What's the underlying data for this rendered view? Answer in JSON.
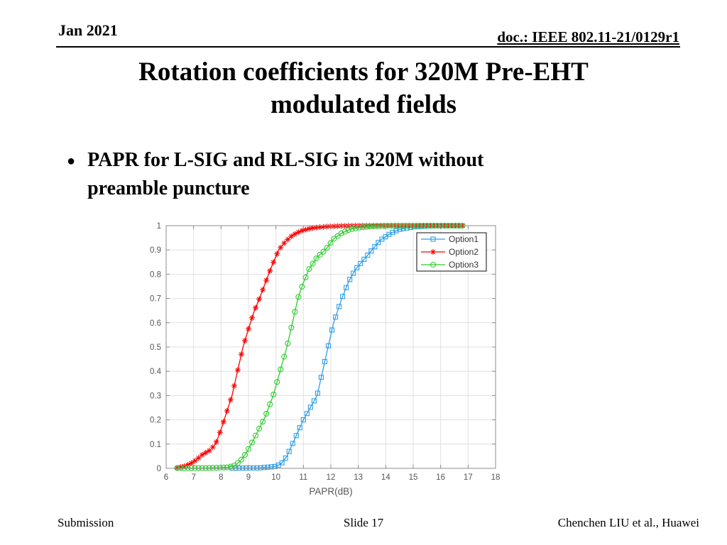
{
  "slide": {
    "header": {
      "date": "Jan 2021",
      "doc_id": "doc.: IEEE 802.11-21/0129r1"
    },
    "title": {
      "line1": "Rotation coefficients for 320M Pre-EHT",
      "line2": "modulated fields"
    },
    "bullet": {
      "marker": "●",
      "line1": "PAPR for L-SIG and RL-SIG in 320M without",
      "line2": "preamble puncture"
    },
    "footer": {
      "left": "Submission",
      "center": "Slide 17",
      "right": "Chenchen LIU et al., Huawei"
    }
  },
  "chart_data": {
    "type": "line",
    "subtype": "cdf",
    "title": "",
    "xlabel": "PAPR(dB)",
    "ylabel": "",
    "xlim": [
      6,
      18
    ],
    "ylim": [
      0,
      1
    ],
    "xticks": [
      6,
      7,
      8,
      9,
      10,
      11,
      12,
      13,
      14,
      15,
      16,
      17,
      18
    ],
    "yticks": [
      0,
      0.1,
      0.2,
      0.3,
      0.4,
      0.5,
      0.6,
      0.7,
      0.8,
      0.9,
      1
    ],
    "ytick_labels": [
      "0",
      "0.1",
      "0.2",
      "0.3",
      "0.4",
      "0.5",
      "0.6",
      "0.7",
      "0.8",
      "0.9",
      "1"
    ],
    "grid": true,
    "legend": {
      "position": "upper-right",
      "entries": [
        "Option1",
        "Option2",
        "Option3"
      ]
    },
    "marker_step": 0.13,
    "colors": {
      "grid": "#e0e0e0",
      "box": "#8c8c8c",
      "tick_text": "#555555",
      "legend_text": "#333333",
      "legend_border": "#333333"
    },
    "series": [
      {
        "name": "Option1",
        "color": "#2e9fe8",
        "marker": "square",
        "points": [
          [
            8.4,
            0.001
          ],
          [
            9.4,
            0.002
          ],
          [
            10.0,
            0.008
          ],
          [
            10.2,
            0.02
          ],
          [
            10.4,
            0.05
          ],
          [
            10.6,
            0.1
          ],
          [
            10.8,
            0.15
          ],
          [
            11.0,
            0.2
          ],
          [
            11.25,
            0.25
          ],
          [
            11.5,
            0.3
          ],
          [
            11.7,
            0.4
          ],
          [
            11.9,
            0.5
          ],
          [
            12.1,
            0.6
          ],
          [
            12.4,
            0.7
          ],
          [
            12.65,
            0.77
          ],
          [
            12.9,
            0.82
          ],
          [
            13.2,
            0.86
          ],
          [
            13.5,
            0.9
          ],
          [
            13.8,
            0.94
          ],
          [
            14.2,
            0.97
          ],
          [
            14.5,
            0.985
          ],
          [
            15.0,
            0.995
          ],
          [
            15.6,
            0.999
          ],
          [
            16.0,
            1.0
          ],
          [
            16.8,
            1.0
          ]
        ]
      },
      {
        "name": "Option2",
        "color": "#ff0000",
        "marker": "asterisk",
        "points": [
          [
            6.4,
            0.002
          ],
          [
            6.7,
            0.01
          ],
          [
            6.9,
            0.02
          ],
          [
            7.1,
            0.035
          ],
          [
            7.3,
            0.055
          ],
          [
            7.6,
            0.075
          ],
          [
            7.8,
            0.1
          ],
          [
            8.0,
            0.16
          ],
          [
            8.2,
            0.23
          ],
          [
            8.4,
            0.3
          ],
          [
            8.6,
            0.4
          ],
          [
            8.8,
            0.5
          ],
          [
            9.0,
            0.575
          ],
          [
            9.2,
            0.645
          ],
          [
            9.4,
            0.7
          ],
          [
            9.6,
            0.76
          ],
          [
            9.8,
            0.82
          ],
          [
            10.1,
            0.9
          ],
          [
            10.35,
            0.935
          ],
          [
            10.6,
            0.96
          ],
          [
            10.9,
            0.978
          ],
          [
            11.3,
            0.99
          ],
          [
            11.8,
            0.996
          ],
          [
            12.4,
            0.999
          ],
          [
            13.0,
            1.0
          ],
          [
            16.8,
            1.0
          ]
        ]
      },
      {
        "name": "Option3",
        "color": "#2fcc2f",
        "marker": "circle",
        "points": [
          [
            6.4,
            0.001
          ],
          [
            7.4,
            0.001
          ],
          [
            8.25,
            0.004
          ],
          [
            8.5,
            0.012
          ],
          [
            8.7,
            0.03
          ],
          [
            8.9,
            0.06
          ],
          [
            9.1,
            0.1
          ],
          [
            9.35,
            0.155
          ],
          [
            9.6,
            0.21
          ],
          [
            9.9,
            0.3
          ],
          [
            10.15,
            0.4
          ],
          [
            10.4,
            0.5
          ],
          [
            10.6,
            0.6
          ],
          [
            10.8,
            0.7
          ],
          [
            11.0,
            0.765
          ],
          [
            11.2,
            0.82
          ],
          [
            11.5,
            0.87
          ],
          [
            11.8,
            0.9
          ],
          [
            12.1,
            0.945
          ],
          [
            12.4,
            0.97
          ],
          [
            12.7,
            0.985
          ],
          [
            13.1,
            0.993
          ],
          [
            13.6,
            0.998
          ],
          [
            14.1,
            1.0
          ],
          [
            16.8,
            1.0
          ]
        ]
      }
    ]
  }
}
